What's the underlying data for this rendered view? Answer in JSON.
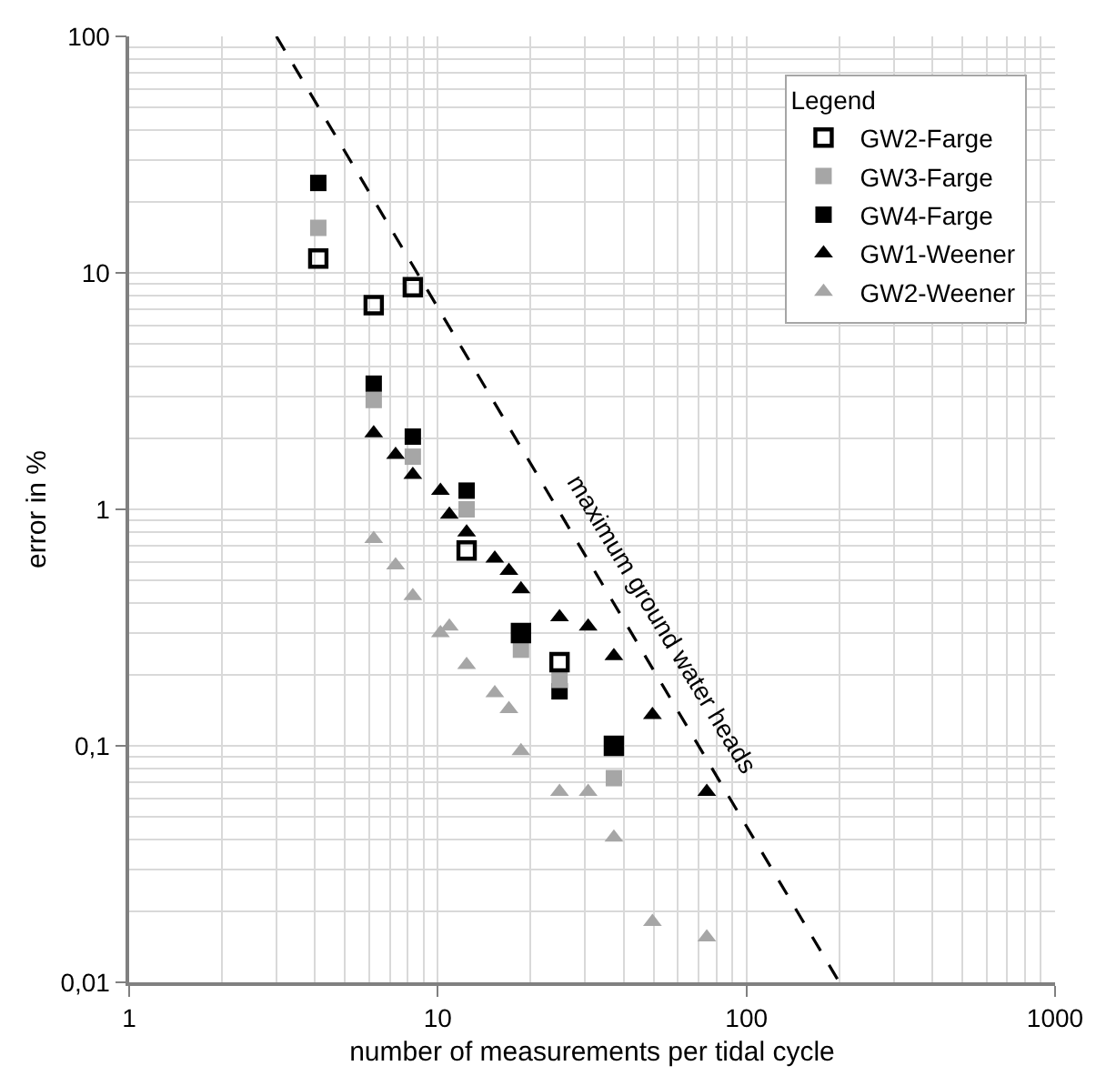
{
  "chart_data": {
    "type": "scatter",
    "xlabel": "number of measurements per tidal cycle",
    "ylabel": "error in %",
    "legend_title": "Legend",
    "legend": "top right",
    "log": "xy",
    "grid": true,
    "xlim": [
      1,
      1000
    ],
    "xticks": [
      1,
      10,
      100,
      1000
    ],
    "ylim": [
      0.01,
      100
    ],
    "yticks": [
      {
        "value": 0.01,
        "label": "0,01"
      },
      {
        "value": 0.1,
        "label": "0,1"
      },
      1,
      10,
      100
    ],
    "series": [
      {
        "name": "GW2-Farge",
        "color": "#000000",
        "marker": "square-open",
        "x": [
          4.1,
          6.2,
          8.3,
          12.4,
          18.6,
          24.8,
          37.2
        ],
        "values": [
          11.5,
          7.3,
          8.7,
          0.67,
          0.3,
          0.226,
          0.1
        ]
      },
      {
        "name": "GW3-Farge",
        "color": "#a6a6a6",
        "marker": "square",
        "x": [
          4.1,
          6.2,
          8.3,
          12.4,
          18.6,
          24.8,
          37.2
        ],
        "values": [
          15.5,
          2.9,
          1.67,
          1.0,
          0.255,
          0.19,
          0.073
        ]
      },
      {
        "name": "GW4-Farge",
        "color": "#000000",
        "marker": "square",
        "x": [
          4.1,
          6.2,
          8.3,
          12.4,
          18.6,
          24.8,
          37.2
        ],
        "values": [
          24,
          3.4,
          2.03,
          1.2,
          0.3,
          0.17,
          0.1
        ]
      },
      {
        "name": "GW1-Weener",
        "color": "#000000",
        "marker": "triangle",
        "x": [
          6.2,
          7.3,
          8.3,
          10.2,
          10.9,
          12.4,
          15.3,
          17,
          18.6,
          24.8,
          30.7,
          37.2,
          49.6,
          74.4
        ],
        "values": [
          2.1,
          1.7,
          1.4,
          1.2,
          0.95,
          0.8,
          0.62,
          0.55,
          0.46,
          0.35,
          0.32,
          0.24,
          0.135,
          0.064
        ]
      },
      {
        "name": "GW2-Weener",
        "color": "#a6a6a6",
        "marker": "triangle",
        "x": [
          6.2,
          7.3,
          8.3,
          10.2,
          10.9,
          12.4,
          15.3,
          17,
          18.6,
          24.8,
          30.7,
          37.2,
          49.6,
          74.4
        ],
        "values": [
          0.75,
          0.58,
          0.43,
          0.3,
          0.32,
          0.22,
          0.167,
          0.143,
          0.095,
          0.064,
          0.064,
          0.041,
          0.018,
          0.0155
        ]
      },
      {
        "type": "line",
        "color": "#000000",
        "marker": "none",
        "line_style": "dashed",
        "x": [
          3,
          200
        ],
        "values": [
          100,
          0.01
        ]
      }
    ],
    "annotations": [
      "maximum ground water heads"
    ]
  }
}
